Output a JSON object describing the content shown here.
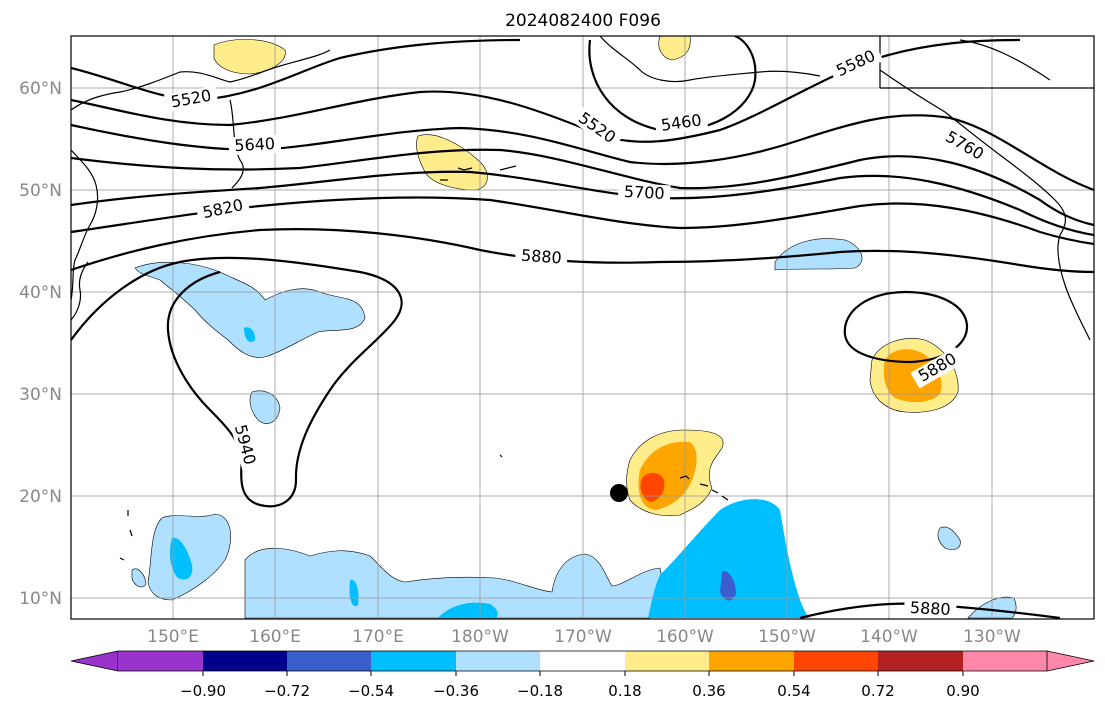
{
  "title": "2024082400 F096",
  "lat_axis": {
    "labels": [
      "60°N",
      "50°N",
      "40°N",
      "30°N",
      "20°N",
      "10°N"
    ],
    "values": [
      60,
      50,
      40,
      30,
      20,
      10
    ]
  },
  "lon_axis": {
    "labels": [
      "150°E",
      "160°E",
      "170°E",
      "180°W",
      "170°W",
      "160°W",
      "150°W",
      "140°W",
      "130°W"
    ],
    "values": [
      150,
      160,
      170,
      180,
      190,
      200,
      210,
      220,
      230
    ]
  },
  "extent": {
    "lon_min": 140,
    "lon_max": 240,
    "lat_min": 8,
    "lat_max": 65
  },
  "contour_labels": [
    "5520",
    "5640",
    "5820",
    "5880",
    "5940",
    "5520",
    "5460",
    "5580",
    "5700",
    "5760",
    "5880",
    "5880"
  ],
  "colorbar": {
    "tick_labels": [
      "−0.90",
      "−0.72",
      "−0.54",
      "−0.36",
      "−0.18",
      "0.18",
      "0.36",
      "0.54",
      "0.72",
      "0.90"
    ],
    "colors": [
      "#9933cc",
      "#00008b",
      "#3a5fcd",
      "#00bfff",
      "#b0e0ff",
      "#ffffff",
      "#ffec8b",
      "#ffa500",
      "#ff4500",
      "#b22222",
      "#ff88aa"
    ]
  },
  "marker": {
    "name": "storm position",
    "lon": 194,
    "lat": 20.3
  }
}
